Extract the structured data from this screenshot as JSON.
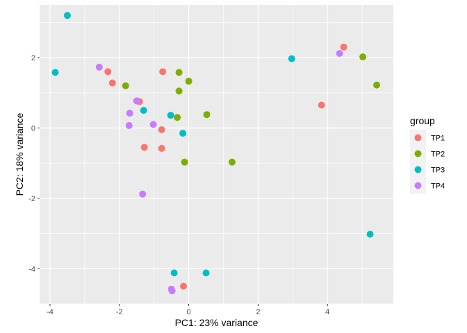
{
  "chart_data": {
    "type": "scatter",
    "xlabel": "PC1: 23% variance",
    "ylabel": "PC2: 18% variance",
    "xlim": [
      -4.3,
      5.9
    ],
    "ylim": [
      -5.0,
      3.5
    ],
    "x_ticks": [
      -4,
      -2,
      0,
      2,
      4
    ],
    "y_ticks": [
      -4,
      -2,
      0,
      2
    ],
    "x_minor": [
      -3,
      -1,
      1,
      3,
      5
    ],
    "y_minor": [
      -5,
      -3,
      -1,
      1,
      3
    ],
    "grid": true,
    "legend": {
      "title": "group",
      "position": "right"
    },
    "series": [
      {
        "name": "TP1",
        "color": "#F8766D",
        "points": [
          {
            "x": -2.33,
            "y": 1.6
          },
          {
            "x": -2.2,
            "y": 1.28
          },
          {
            "x": -0.75,
            "y": 1.6
          },
          {
            "x": -1.42,
            "y": 0.75
          },
          {
            "x": -0.78,
            "y": -0.05
          },
          {
            "x": -1.28,
            "y": -0.55
          },
          {
            "x": -0.78,
            "y": -0.58
          },
          {
            "x": -0.15,
            "y": -4.5
          },
          {
            "x": 3.83,
            "y": 0.65
          },
          {
            "x": 4.47,
            "y": 2.3
          }
        ]
      },
      {
        "name": "TP2",
        "color": "#7CAE00",
        "points": [
          {
            "x": -1.82,
            "y": 1.2
          },
          {
            "x": -0.28,
            "y": 1.58
          },
          {
            "x": 0.0,
            "y": 1.33
          },
          {
            "x": -0.28,
            "y": 1.05
          },
          {
            "x": -0.33,
            "y": 0.3
          },
          {
            "x": 0.52,
            "y": 0.38
          },
          {
            "x": -0.12,
            "y": -0.97
          },
          {
            "x": 1.25,
            "y": -0.97
          },
          {
            "x": 5.02,
            "y": 2.02
          },
          {
            "x": 5.42,
            "y": 1.22
          }
        ]
      },
      {
        "name": "TP3",
        "color": "#00BFC4",
        "points": [
          {
            "x": -3.5,
            "y": 3.2
          },
          {
            "x": -3.85,
            "y": 1.58
          },
          {
            "x": -1.3,
            "y": 0.5
          },
          {
            "x": -0.52,
            "y": 0.36
          },
          {
            "x": -0.17,
            "y": -0.15
          },
          {
            "x": -0.42,
            "y": -4.12
          },
          {
            "x": 0.5,
            "y": -4.12
          },
          {
            "x": 2.97,
            "y": 1.97
          },
          {
            "x": 5.23,
            "y": -3.02
          }
        ]
      },
      {
        "name": "TP4",
        "color": "#C77CFF",
        "points": [
          {
            "x": -2.58,
            "y": 1.73
          },
          {
            "x": -1.5,
            "y": 0.77
          },
          {
            "x": -1.7,
            "y": 0.42
          },
          {
            "x": -1.72,
            "y": 0.07
          },
          {
            "x": -1.02,
            "y": 0.1
          },
          {
            "x": -1.33,
            "y": -1.88
          },
          {
            "x": -0.48,
            "y": -4.63
          },
          {
            "x": -0.5,
            "y": -4.58
          },
          {
            "x": 4.35,
            "y": 2.12
          }
        ]
      }
    ]
  }
}
